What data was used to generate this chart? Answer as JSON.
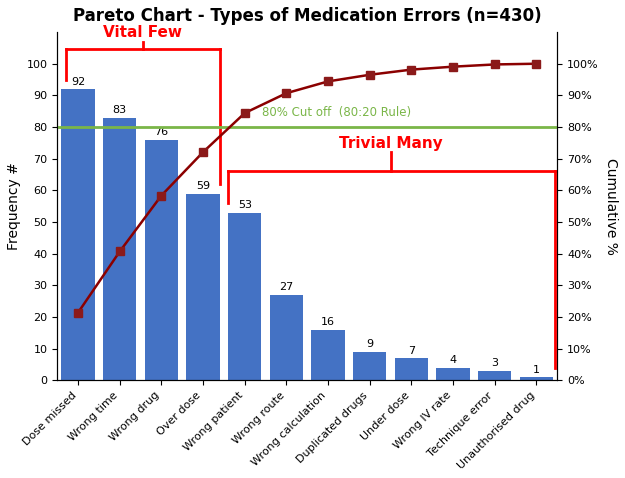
{
  "categories": [
    "Dose missed",
    "Wrong time",
    "Wrong drug",
    "Over dose",
    "Wrong patient",
    "Wrong route",
    "Wrong calculation",
    "Duplicated drugs",
    "Under dose",
    "Wrong IV rate",
    "Technique error",
    "Unauthorised drug"
  ],
  "values": [
    92,
    83,
    76,
    59,
    53,
    27,
    16,
    9,
    7,
    4,
    3,
    1
  ],
  "cumulative_pct": [
    21.4,
    40.7,
    58.37,
    72.09,
    84.42,
    90.7,
    94.42,
    96.51,
    98.14,
    99.07,
    99.77,
    100.0
  ],
  "bar_color": "#4472C4",
  "line_color": "#8B0000",
  "cutoff_color": "#7AB648",
  "title_main": "Pareto Chart - Types of Medication Errors",
  "title_n": " (n=430)",
  "ylabel_left": "Frequency #",
  "ylabel_right": "Cumulative %",
  "ylim_left": [
    0,
    110
  ],
  "ylim_right": [
    0,
    110
  ],
  "cutoff_value": 80,
  "cutoff_label": "80% Cut off  (80:20 Rule)",
  "vital_few_label": "Vital Few",
  "trivial_many_label": "Trivial Many",
  "bracket_color": "#FF0000",
  "background_color": "#FFFFFF",
  "title_fontsize": 12,
  "axis_label_fontsize": 10,
  "tick_fontsize": 8,
  "annotation_fontsize": 8,
  "marker": "s",
  "marker_color": "#8B1A1A",
  "marker_size": 6
}
